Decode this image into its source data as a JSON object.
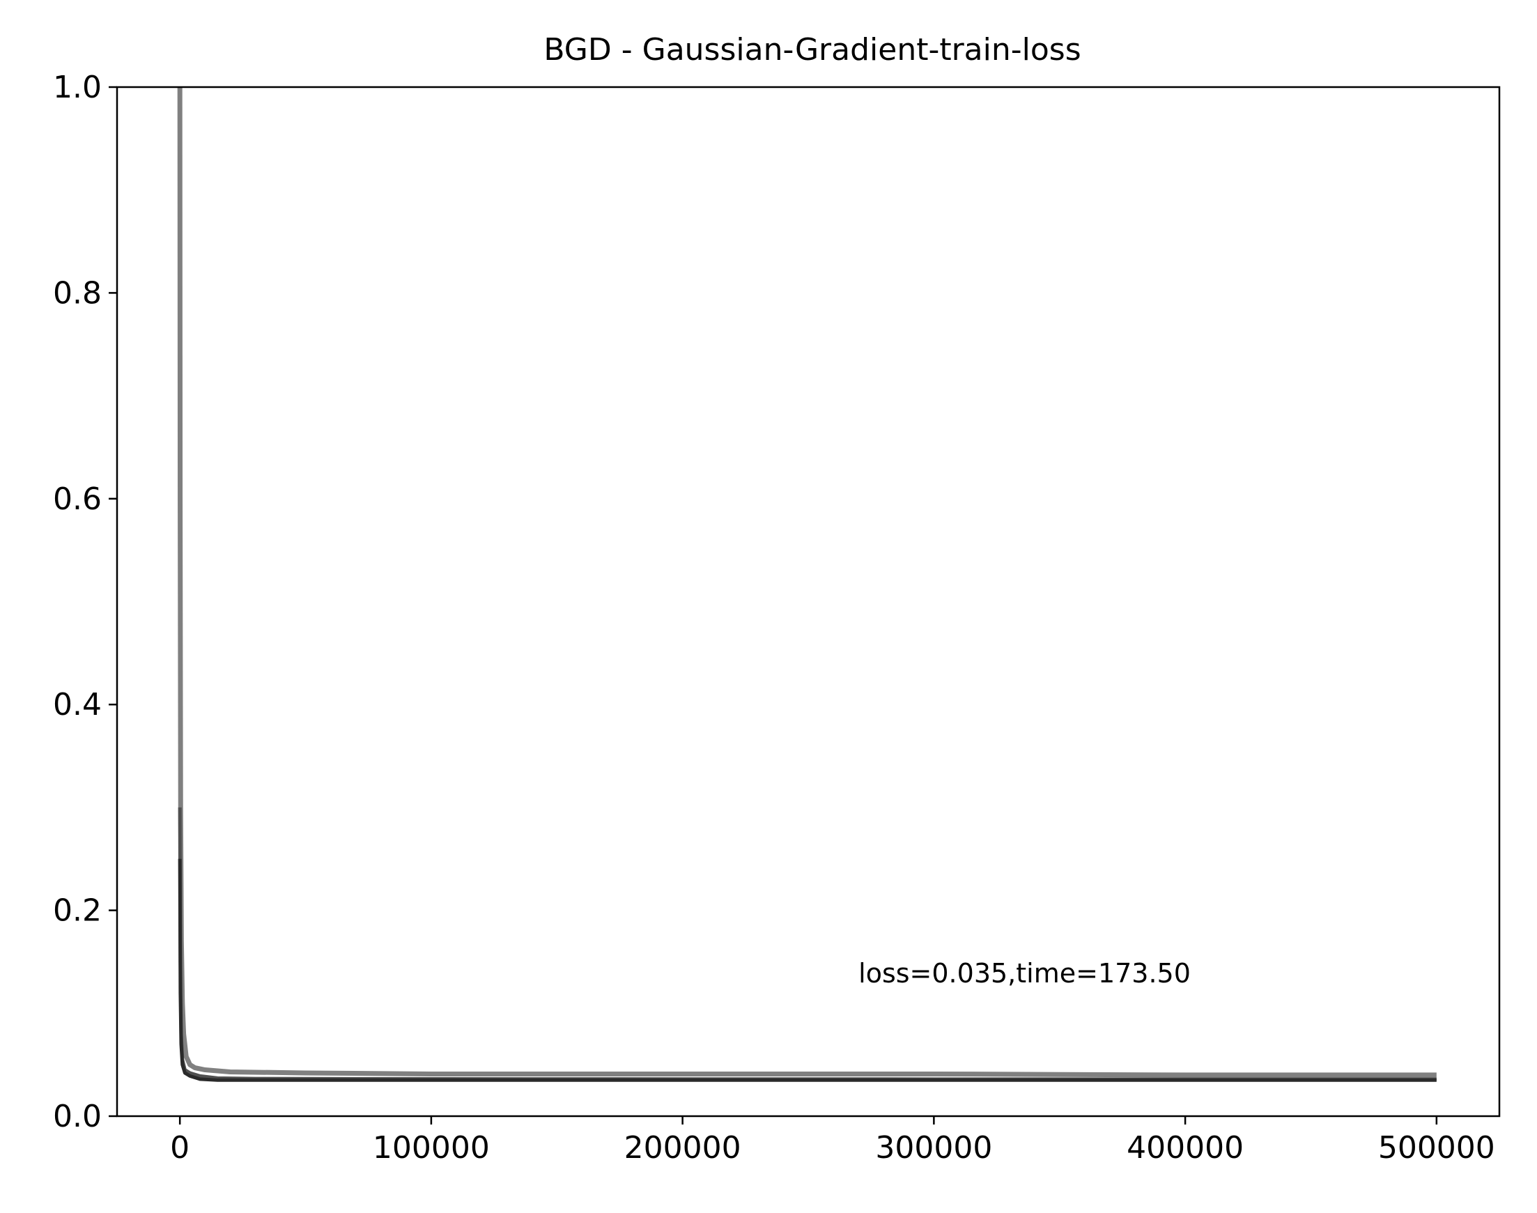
{
  "chart_data": {
    "type": "line",
    "title": "BGD - Gaussian-Gradient-train-loss",
    "xlabel": "",
    "ylabel": "",
    "xlim": [
      -25000,
      525000
    ],
    "ylim": [
      0,
      1.0
    ],
    "xticks": [
      0,
      100000,
      200000,
      300000,
      400000,
      500000
    ],
    "xtick_labels": [
      "0",
      "100000",
      "200000",
      "300000",
      "400000",
      "500000"
    ],
    "yticks": [
      0,
      0.2,
      0.4,
      0.6,
      0.8,
      1.0
    ],
    "ytick_labels": [
      "0.0",
      "0.2",
      "0.4",
      "0.6",
      "0.8",
      "1.0"
    ],
    "grid": false,
    "annotation": {
      "text": "loss=0.035,time=173.50",
      "x": 270000,
      "y": 0.13
    },
    "series": [
      {
        "color": "#808080",
        "x": [
          0,
          100,
          300,
          600,
          1000,
          1500,
          2500,
          4000,
          6000,
          10000,
          20000,
          50000,
          100000,
          200000,
          300000,
          400000,
          500000
        ],
        "y": [
          1.0,
          0.6,
          0.3,
          0.17,
          0.11,
          0.08,
          0.058,
          0.05,
          0.047,
          0.045,
          0.043,
          0.042,
          0.041,
          0.041,
          0.041,
          0.04,
          0.04
        ]
      },
      {
        "color": "#505050",
        "x": [
          0,
          200,
          500,
          1000,
          2000,
          4000,
          8000,
          15000,
          30000,
          100000,
          300000,
          500000
        ],
        "y": [
          0.3,
          0.15,
          0.08,
          0.055,
          0.045,
          0.042,
          0.039,
          0.037,
          0.0365,
          0.0362,
          0.036,
          0.036
        ]
      },
      {
        "color": "#2a2a2a",
        "x": [
          0,
          200,
          500,
          1000,
          2000,
          4000,
          8000,
          15000,
          30000,
          100000,
          300000,
          500000
        ],
        "y": [
          0.25,
          0.12,
          0.07,
          0.05,
          0.042,
          0.039,
          0.036,
          0.035,
          0.035,
          0.035,
          0.035,
          0.035
        ]
      }
    ]
  }
}
